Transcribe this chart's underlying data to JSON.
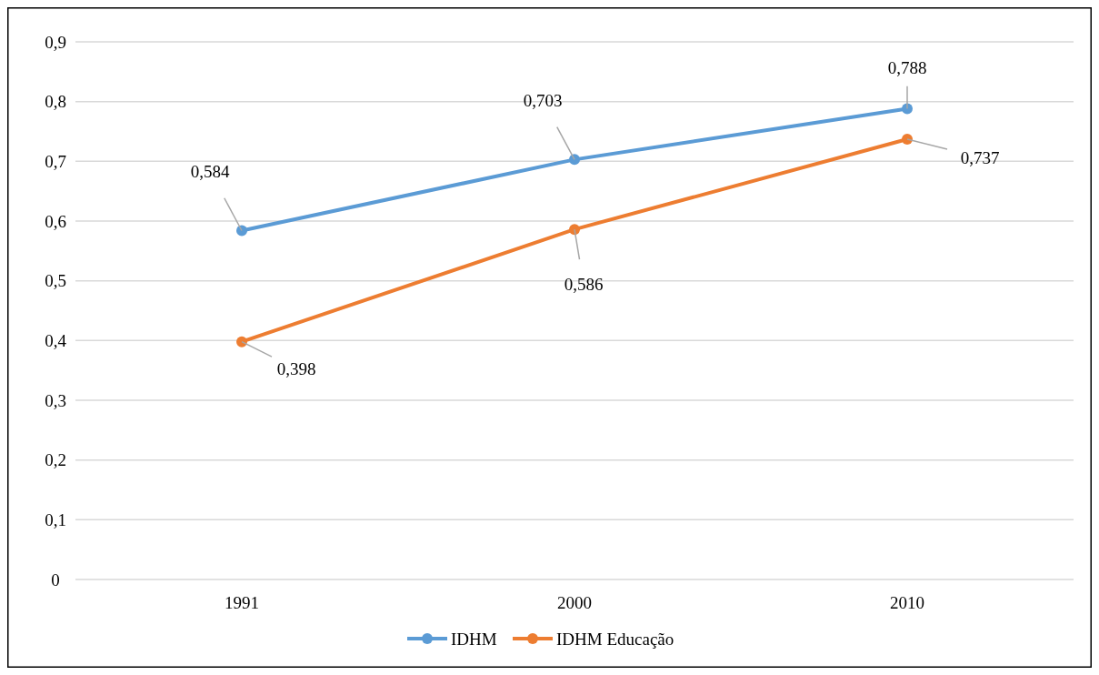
{
  "chart_data": {
    "type": "line",
    "categories": [
      "1991",
      "2000",
      "2010"
    ],
    "series": [
      {
        "name": "IDHM",
        "color": "#5b9bd5",
        "values": [
          0.584,
          0.703,
          0.788
        ],
        "value_labels": [
          "0,584",
          "0,703",
          "0,788"
        ]
      },
      {
        "name": "IDHM Educação",
        "color": "#ed7d31",
        "values": [
          0.398,
          0.586,
          0.737
        ],
        "value_labels": [
          "0,398",
          "0,586",
          "0,737"
        ]
      }
    ],
    "ylim": [
      0,
      0.9
    ],
    "yticks": [
      {
        "value": 0,
        "label": "0"
      },
      {
        "value": 0.1,
        "label": "0,1"
      },
      {
        "value": 0.2,
        "label": "0,2"
      },
      {
        "value": 0.3,
        "label": "0,3"
      },
      {
        "value": 0.4,
        "label": "0,4"
      },
      {
        "value": 0.5,
        "label": "0,5"
      },
      {
        "value": 0.6,
        "label": "0,6"
      },
      {
        "value": 0.7,
        "label": "0,7"
      },
      {
        "value": 0.8,
        "label": "0,8"
      },
      {
        "value": 0.9,
        "label": "0,9"
      }
    ],
    "grid": "y",
    "legend": "bottom",
    "marker": "circle",
    "line_style": "solid"
  }
}
